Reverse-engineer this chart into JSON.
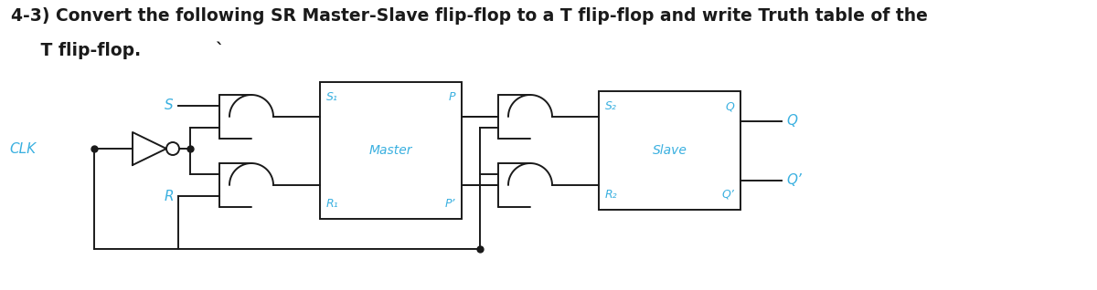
{
  "title_line1": "4-3) Convert the following SR Master-Slave flip-flop to a T flip-flop and write Truth table of the",
  "title_line2": "     T flip-flop.",
  "title_backtick": "`",
  "title_fontsize": 13.5,
  "bg_color": "#ffffff",
  "text_color": "#1a1a1a",
  "diagram_color": "#1a1a1a",
  "label_color": "#3ab0e0",
  "label_S": "S",
  "label_R": "R",
  "label_CLK": "CLK",
  "label_S1": "S₁",
  "label_P": "P",
  "label_R1": "R₁",
  "label_Pprime": "P’",
  "label_Master": "Master",
  "label_S2": "S₂",
  "label_Q_slave": "Q",
  "label_Q_out": "Q",
  "label_Slave": "Slave",
  "label_R2": "R₂",
  "label_Qprime_slave": "Q’",
  "label_Qprime_out": "Q’"
}
